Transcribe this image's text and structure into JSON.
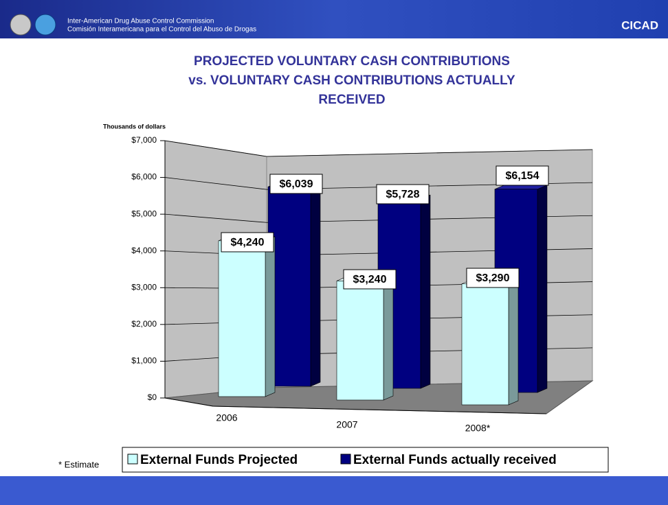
{
  "header": {
    "line1": "Inter-American Drug Abuse Control Commission",
    "line2": "Comisión Interamericana para el Control del Abuso de Drogas",
    "brand": "CICAD"
  },
  "footnote": "* Estimate",
  "chart_data": {
    "type": "bar3d",
    "title": [
      "PROJECTED VOLUNTARY CASH CONTRIBUTIONS",
      "vs. VOLUNTARY CASH CONTRIBUTIONS ACTUALLY",
      "RECEIVED"
    ],
    "y_label": "Thousands of dollars",
    "categories": [
      "2006",
      "2007",
      "2008*"
    ],
    "series": [
      {
        "name": "External Funds Projected",
        "color": "#ccffff",
        "values": [
          4240,
          3240,
          3290
        ],
        "value_labels": [
          "$4,240",
          "$3,240",
          "$3,290"
        ]
      },
      {
        "name": "External Funds actually received",
        "color": "#000080",
        "values": [
          6039,
          5728,
          6154
        ],
        "value_labels": [
          "$6,039",
          "$5,728",
          "$6,154"
        ]
      }
    ],
    "ylim": [
      0,
      7000
    ],
    "yticks": [
      {
        "value": 0,
        "label": "$0"
      },
      {
        "value": 1000,
        "label": "$1,000"
      },
      {
        "value": 2000,
        "label": "$2,000"
      },
      {
        "value": 3000,
        "label": "$3,000"
      },
      {
        "value": 4000,
        "label": "$4,000"
      },
      {
        "value": 5000,
        "label": "$5,000"
      },
      {
        "value": 6000,
        "label": "$6,000"
      },
      {
        "value": 7000,
        "label": "$7,000"
      }
    ],
    "grid": true,
    "legend": "bottom"
  }
}
